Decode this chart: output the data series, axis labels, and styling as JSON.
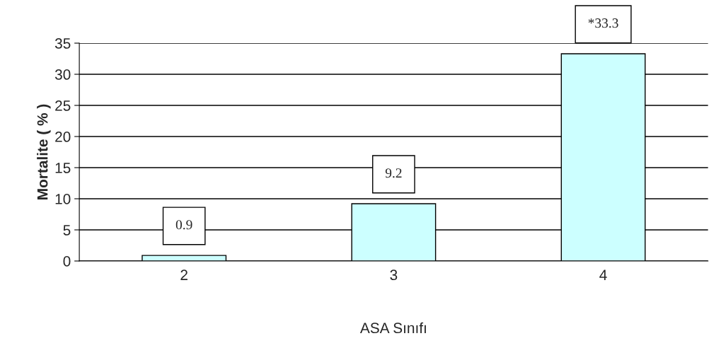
{
  "chart_data": {
    "type": "bar",
    "categories": [
      "2",
      "3",
      "4"
    ],
    "values": [
      0.9,
      9.2,
      33.3
    ],
    "value_labels": [
      "0.9",
      "9.2",
      "*33.3"
    ],
    "color": "#ccffff",
    "xlabel": "ASA Sınıfı",
    "ylabel": "Mortalite ( % )",
    "ylim": [
      0,
      35
    ],
    "yticks": [
      0,
      5,
      10,
      15,
      20,
      25,
      30,
      35
    ],
    "grid": "y"
  }
}
